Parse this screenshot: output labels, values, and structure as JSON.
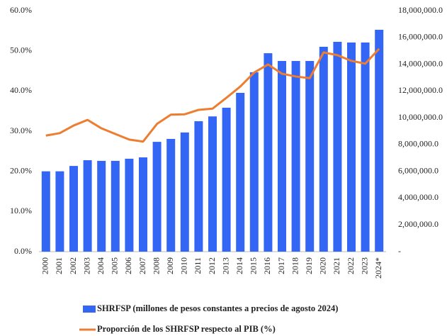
{
  "chart_data": {
    "type": "bar",
    "categories": [
      "2000",
      "2001",
      "2002",
      "2003",
      "2004",
      "2005",
      "2006",
      "2007",
      "2008",
      "2009",
      "2010",
      "2011",
      "2012",
      "2013",
      "2014",
      "2015",
      "2016",
      "2017",
      "2018",
      "2019",
      "2020",
      "2021",
      "2022",
      "2023",
      "2024*"
    ],
    "series": [
      {
        "name": "SHRFSP (millones de pesos constantes a precios de agosto 2024)",
        "type": "bar",
        "axis": "y2",
        "color": "#3366f5",
        "values": [
          6000000,
          6000000,
          6400000,
          6830000,
          6780000,
          6780000,
          6940000,
          7040000,
          8200000,
          8420000,
          8900000,
          9740000,
          10100000,
          10750000,
          11860000,
          13400000,
          14820000,
          14240000,
          14240000,
          14240000,
          15300000,
          15670000,
          15620000,
          15620000,
          16570000
        ]
      },
      {
        "name": "Proporción de los SHRFSP respecto al PIB (%)",
        "type": "line",
        "axis": "y",
        "color": "#ed7d31",
        "values": [
          28.9,
          29.5,
          31.4,
          32.8,
          30.7,
          29.3,
          27.9,
          27.4,
          31.8,
          34.1,
          34.2,
          35.3,
          35.6,
          38.3,
          41.1,
          44.6,
          46.6,
          44.3,
          43.6,
          43.2,
          49.6,
          48.9,
          47.5,
          46.8,
          50.5
        ]
      }
    ],
    "ylim": [
      0,
      60
    ],
    "yticks": [
      {
        "value": 0,
        "label": "0.0%"
      },
      {
        "value": 10,
        "label": "10.0%"
      },
      {
        "value": 20,
        "label": "20.0%"
      },
      {
        "value": 30,
        "label": "30.0%"
      },
      {
        "value": 40,
        "label": "40.0%"
      },
      {
        "value": 50,
        "label": "50.0%"
      },
      {
        "value": 60,
        "label": "60.0%"
      }
    ],
    "y2lim": [
      0,
      18000000
    ],
    "y2ticks": [
      {
        "value": 0,
        "label": "-"
      },
      {
        "value": 2000000,
        "label": "2,000,000.0"
      },
      {
        "value": 4000000,
        "label": "4,000,000.0"
      },
      {
        "value": 6000000,
        "label": "6,000,000.0"
      },
      {
        "value": 8000000,
        "label": "8,000,000.0"
      },
      {
        "value": 10000000,
        "label": "10,000,000.0"
      },
      {
        "value": 12000000,
        "label": "12,000,000.0"
      },
      {
        "value": 14000000,
        "label": "14,000,000.0"
      },
      {
        "value": 16000000,
        "label": "16,000,000.0"
      },
      {
        "value": 18000000,
        "label": "18,000,000.0"
      }
    ]
  }
}
